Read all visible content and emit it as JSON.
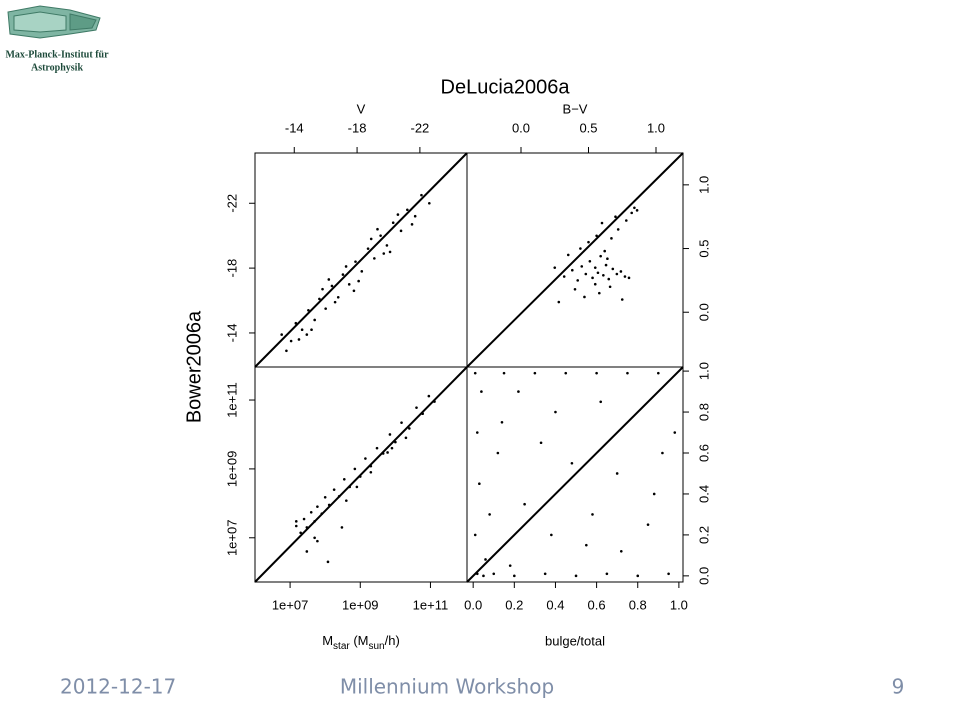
{
  "header": {
    "logo_lines": [
      "Max-Planck-Institut für",
      "Astrophysik"
    ]
  },
  "title": "DeLucia2006a",
  "y_label": "Bower2006a",
  "chart_data": [
    {
      "type": "scatter",
      "x_label": "V",
      "xaxis_side": "top",
      "yaxis_side": "left",
      "color": "#000000",
      "xlim": [
        -11.5,
        -25
      ],
      "ylim": [
        -11.9,
        -25.1
      ],
      "xticks": [
        -14,
        -18,
        -22
      ],
      "yticks": [
        -14,
        -18,
        -22
      ],
      "x": [
        -13.2,
        -13.8,
        -14.1,
        -14.5,
        -14.9,
        -15.3,
        -15.6,
        -16.0,
        -16.4,
        -16.8,
        -17.1,
        -17.5,
        -17.9,
        -18.3,
        -18.7,
        -19.1,
        -19.5,
        -19.9,
        -20.3,
        -20.8,
        -21.2,
        -21.7,
        -22.1,
        -22.6,
        -13.5,
        -14.3,
        -15.1,
        -15.8,
        -16.6,
        -17.3,
        -18.1,
        -18.9,
        -19.7,
        -20.6,
        -21.5,
        -14.8,
        -16.2,
        -17.8,
        -19.3,
        -20.1
      ],
      "y": [
        -13.9,
        -13.5,
        -14.6,
        -14.2,
        -15.4,
        -14.8,
        -16.1,
        -15.5,
        -16.9,
        -16.2,
        -17.6,
        -17.0,
        -18.4,
        -17.8,
        -19.2,
        -18.6,
        -20.0,
        -19.4,
        -20.8,
        -20.3,
        -21.6,
        -21.2,
        -22.5,
        -22.0,
        -12.9,
        -13.6,
        -14.2,
        -16.7,
        -15.9,
        -18.1,
        -17.2,
        -19.8,
        -18.9,
        -21.3,
        -20.7,
        -13.9,
        -17.3,
        -16.6,
        -20.4,
        -19.0
      ]
    },
    {
      "type": "scatter",
      "x_label": "B−V",
      "xaxis_side": "top",
      "yaxis_side": "right",
      "color": "#000000",
      "xlim": [
        -0.4,
        1.2
      ],
      "ylim": [
        -0.43,
        1.25
      ],
      "xticks": [
        {
          "value": 0,
          "label": "0.0"
        },
        0.5,
        {
          "value": 1,
          "label": "1.0"
        }
      ],
      "yticks": [
        {
          "value": 0,
          "label": "0.0"
        },
        0.5,
        {
          "value": 1,
          "label": "1.0"
        }
      ],
      "x": [
        0.32,
        0.38,
        0.42,
        0.45,
        0.48,
        0.51,
        0.53,
        0.55,
        0.57,
        0.59,
        0.61,
        0.63,
        0.65,
        0.68,
        0.71,
        0.74,
        0.77,
        0.8,
        0.35,
        0.44,
        0.5,
        0.56,
        0.62,
        0.67,
        0.72,
        0.4,
        0.47,
        0.58,
        0.66,
        0.75,
        0.28,
        0.25,
        0.6,
        0.7,
        0.78,
        0.82,
        0.84,
        0.86,
        0.55,
        0.64
      ],
      "y": [
        0.28,
        0.33,
        0.25,
        0.36,
        0.3,
        0.4,
        0.27,
        0.35,
        0.31,
        0.44,
        0.29,
        0.37,
        0.26,
        0.34,
        0.3,
        0.32,
        0.28,
        0.27,
        0.45,
        0.5,
        0.55,
        0.6,
        0.48,
        0.58,
        0.65,
        0.18,
        0.12,
        0.15,
        0.2,
        0.1,
        0.08,
        0.35,
        0.7,
        0.75,
        0.72,
        0.78,
        0.82,
        0.8,
        0.22,
        0.42
      ]
    },
    {
      "type": "scatter",
      "x_label": [
        "M",
        "star",
        " (M",
        "sun",
        "/h)"
      ],
      "xaxis_side": "bottom",
      "yaxis_side": "left",
      "log": true,
      "color": "#000000",
      "xlim": [
        1000000,
        1100000000000
      ],
      "ylim": [
        520000,
        910000000000
      ],
      "xticks": [
        {
          "value": 10000000,
          "label": "1e+07"
        },
        {
          "value": 1000000000,
          "label": "1e+09"
        },
        {
          "value": 100000000000,
          "label": "1e+11"
        }
      ],
      "yticks": [
        {
          "value": 10000000,
          "label": "1e+07"
        },
        {
          "value": 1000000000,
          "label": "1e+09"
        },
        {
          "value": 100000000000,
          "label": "1e+11"
        }
      ],
      "x": [
        15000000.0,
        20000000.0,
        25000000.0,
        30000000.0,
        40000000.0,
        50000000.0,
        60000000.0,
        80000000.0,
        100000000.0,
        130000000.0,
        180000000.0,
        250000000.0,
        350000000.0,
        500000000.0,
        700000000.0,
        1000000000.0,
        1400000000.0,
        2000000000.0,
        3000000000.0,
        4500000000.0,
        7000000000.0,
        10000000000.0,
        15000000000.0,
        25000000000.0,
        40000000000.0,
        60000000000.0,
        90000000000.0,
        130000000000.0,
        30000000.0,
        60000000.0,
        120000000.0,
        300000000.0,
        800000000.0,
        2000000000.0,
        6000000000.0,
        20000000000.0,
        50000000.0,
        400000000.0,
        15000000.0,
        8000000000.0
      ],
      "y": [
        22000000.0,
        14000000.0,
        35000000.0,
        20000000.0,
        55000000.0,
        30000000.0,
        80000000.0,
        50000000.0,
        150000000.0,
        90000000.0,
        250000000.0,
        160000000.0,
        500000000.0,
        300000000.0,
        1000000000.0,
        600000000.0,
        2000000000.0,
        1200000000.0,
        4000000000.0,
        2800000000.0,
        10000000000.0,
        6000000000.0,
        22000000000.0,
        15000000000.0,
        60000000000.0,
        40000000000.0,
        130000000000.0,
        90000000000.0,
        4000000.0,
        8000000.0,
        2000000.0,
        20000000.0,
        300000000.0,
        800000000.0,
        3000000000.0,
        8000000000.0,
        10000000.0,
        120000000.0,
        30000000.0,
        4000000000.0
      ]
    },
    {
      "type": "scatter",
      "x_label": "bulge/total",
      "xaxis_side": "bottom",
      "yaxis_side": "right",
      "color": "#000000",
      "xlim": [
        -0.03,
        1.02
      ],
      "ylim": [
        -0.03,
        1.02
      ],
      "xticks": [
        {
          "value": 0,
          "label": "0.0"
        },
        0.2,
        0.4,
        0.6,
        0.8,
        {
          "value": 1,
          "label": "1.0"
        }
      ],
      "yticks": [
        {
          "value": 0,
          "label": "0.0"
        },
        0.2,
        0.4,
        0.6,
        0.8,
        {
          "value": 1,
          "label": "1.0"
        }
      ],
      "x": [
        0.02,
        0.05,
        0.1,
        0.2,
        0.35,
        0.5,
        0.65,
        0.8,
        0.95,
        0.01,
        0.03,
        0.02,
        0.04,
        0.01,
        0.15,
        0.3,
        0.45,
        0.6,
        0.75,
        0.9,
        0.12,
        0.25,
        0.4,
        0.55,
        0.7,
        0.85,
        0.08,
        0.18,
        0.33,
        0.62,
        0.88,
        0.98,
        0.22,
        0.48,
        0.72,
        0.14,
        0.38,
        0.58,
        0.92,
        0.06
      ],
      "y": [
        0.01,
        0.0,
        0.01,
        0.0,
        0.01,
        0.0,
        0.01,
        0.0,
        0.01,
        0.2,
        0.45,
        0.7,
        0.9,
        0.99,
        0.99,
        0.99,
        0.99,
        0.99,
        0.99,
        0.99,
        0.6,
        0.35,
        0.8,
        0.15,
        0.5,
        0.25,
        0.3,
        0.05,
        0.65,
        0.85,
        0.4,
        0.7,
        0.9,
        0.55,
        0.12,
        0.75,
        0.2,
        0.3,
        0.6,
        0.08
      ]
    }
  ],
  "footer": {
    "date": "2012-12-17",
    "event": "Millennium Workshop",
    "page": "9"
  }
}
